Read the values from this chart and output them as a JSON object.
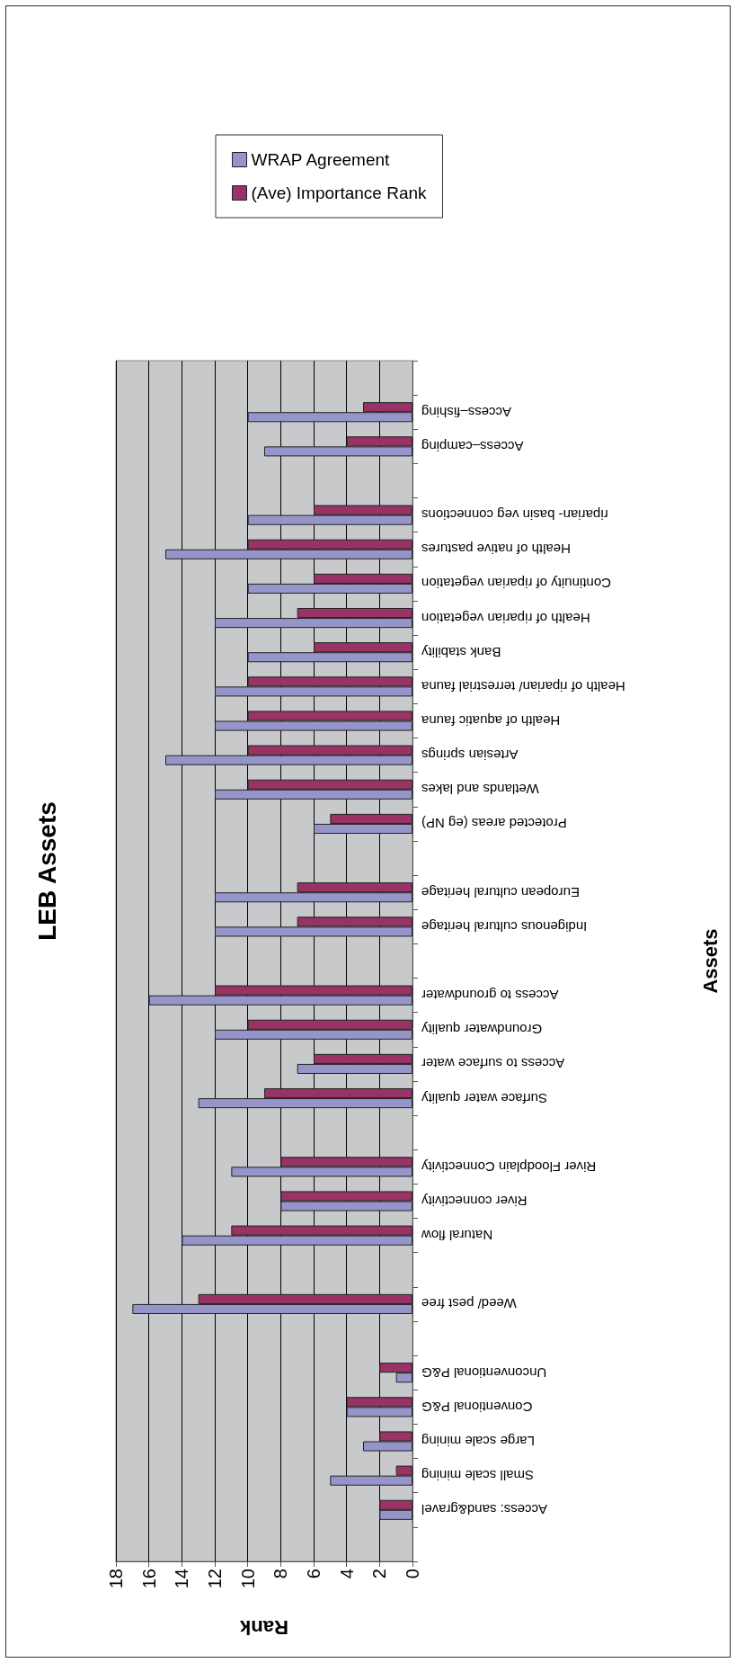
{
  "chart_data": {
    "type": "bar",
    "orientation": "horizontal",
    "title": "LEB Assets",
    "xlabel": "Rank",
    "ylabel": "Assets",
    "categories": [
      null,
      "Access–fishing",
      "Access–camping",
      null,
      "riparian- basin veg connections",
      "Health of native pastures",
      "Continuity of riparian vegetation",
      "Health of riparian vegetation",
      "Bank stability",
      "Health of riparian/ terrestrial fauna",
      "Health of aquatic fauna",
      "Artesian springs",
      "Wetlands and lakes",
      "Protected areas (eg NP)",
      null,
      "European cultural heritage",
      "Indigenous cultural heritage",
      null,
      "Access to groundwater",
      "Groundwater quality",
      "Access to surface water",
      "Surface water quality",
      null,
      "River Floodplain Connectivity",
      "River connectivity",
      "Natural flow",
      null,
      "Weed/ pest free",
      null,
      "Unconventional P&G",
      "Conventional P&G",
      "Large scale mining",
      "Small scale mining",
      "Access: sand&gravel",
      null
    ],
    "series": [
      {
        "name": "WRAP Agreement",
        "color": "#9595ca",
        "values": [
          null,
          10,
          9,
          null,
          10,
          15,
          10,
          12,
          10,
          12,
          12,
          15,
          12,
          6,
          null,
          12,
          12,
          null,
          16,
          12,
          7,
          13,
          null,
          11,
          8,
          14,
          null,
          17,
          null,
          1,
          4,
          3,
          5,
          2,
          null
        ]
      },
      {
        "name": "(Ave) Importance Rank",
        "color": "#993366",
        "values": [
          null,
          3,
          4,
          null,
          6,
          10,
          6,
          7,
          6,
          10,
          10,
          10,
          10,
          5,
          null,
          7,
          7,
          null,
          12,
          10,
          6,
          9,
          null,
          8,
          8,
          11,
          null,
          13,
          null,
          2,
          4,
          2,
          1,
          2,
          null
        ]
      }
    ],
    "xlim": [
      18,
      0
    ],
    "xticks": [
      0,
      2,
      4,
      6,
      8,
      10,
      12,
      14,
      16,
      18
    ],
    "grid": "x",
    "legend": "top"
  }
}
